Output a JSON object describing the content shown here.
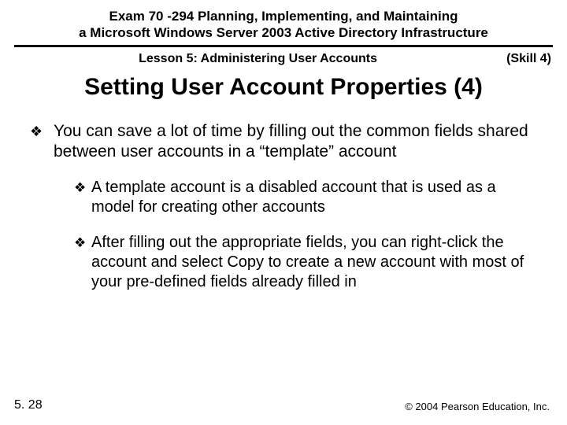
{
  "colors": {
    "background": "#ffffff",
    "text": "#000000",
    "rule": "#000000"
  },
  "typography": {
    "family": "Arial",
    "header_top_size_pt": 13,
    "lesson_size_pt": 12,
    "title_size_pt": 23,
    "body_level1_size_pt": 16,
    "body_level2_size_pt": 15,
    "footer_page_size_pt": 12,
    "footer_copyright_size_pt": 10
  },
  "header": {
    "line1": "Exam 70 -294 Planning, Implementing, and Maintaining",
    "line2": "a Microsoft Windows Server 2003 Active Directory Infrastructure",
    "lesson": "Lesson 5: Administering User Accounts",
    "skill": "(Skill 4)"
  },
  "title": "Setting User Account Properties (4)",
  "bullets": {
    "glyph": "❖",
    "items": [
      {
        "text": "You can save a lot of time by filling out the common fields shared between user accounts in a “template” account",
        "children": [
          {
            "text": "A template account is a disabled account that is used as a model for creating other accounts"
          },
          {
            "text": "After filling out the appropriate fields, you can right-click the account and select Copy to create a new account with most of your pre-defined fields already filled in"
          }
        ]
      }
    ]
  },
  "footer": {
    "page": "5. 28",
    "copyright": "© 2004 Pearson Education, Inc."
  }
}
